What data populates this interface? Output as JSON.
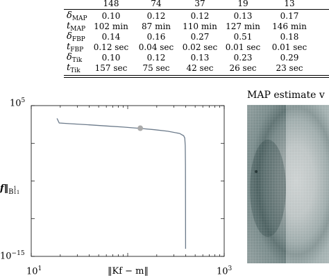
{
  "table": {
    "columns": [
      "148",
      "74",
      "37",
      "19",
      "13"
    ],
    "rows": [
      {
        "symbol": "δ",
        "sub": "MAP",
        "sub_italic": false,
        "values": [
          "0.10",
          "0.12",
          "0.12",
          "0.13",
          "0.17"
        ]
      },
      {
        "symbol": "t",
        "sub": "MAP",
        "sub_italic": false,
        "values": [
          "102 min",
          "87 min",
          "110 min",
          "127 min",
          "146 min"
        ]
      },
      {
        "symbol": "δ",
        "sub": "FBP",
        "sub_italic": false,
        "values": [
          "0.14",
          "0.16",
          "0.27",
          "0.51",
          "0.18"
        ]
      },
      {
        "symbol": "t",
        "sub": "FBP",
        "sub_italic": false,
        "values": [
          "0.12 sec",
          "0.04 sec",
          "0.02 sec",
          "0.01 sec",
          "0.01 sec"
        ]
      },
      {
        "symbol": "δ",
        "sub": "Tik",
        "sub_italic": false,
        "values": [
          "0.10",
          "0.12",
          "0.13",
          "0.23",
          "0.29"
        ]
      },
      {
        "symbol": "t",
        "sub": "Tik",
        "sub_italic": false,
        "values": [
          "157 sec",
          "75 sec",
          "42 sec",
          "26 sec",
          "23 sec"
        ]
      }
    ]
  },
  "chart_data": {
    "type": "line",
    "xlabel": "‖Kf − m‖",
    "ylabel": "f‖",
    "ylabel_sub": "B",
    "ylabel_sub_sup": "1",
    "ylabel_sub_sub": "11",
    "xscale": "log",
    "yscale": "log",
    "xlim": [
      10,
      1000
    ],
    "ylim": [
      1e-15,
      100000
    ],
    "x_ticks": [
      {
        "base": "10",
        "exp": "1",
        "value": 10
      },
      {
        "base": "10",
        "exp": "3",
        "value": 1000
      }
    ],
    "y_ticks": [
      {
        "base": "10",
        "exp": "5",
        "value": 100000
      },
      {
        "base": "10",
        "exp": "−15",
        "value": 1e-15
      }
    ],
    "series": [
      {
        "color": "#6b7a8a",
        "points": [
          [
            18.5,
            1995
          ],
          [
            19.5,
            501
          ],
          [
            25,
            398
          ],
          [
            40,
            282
          ],
          [
            60,
            200
          ],
          [
            90,
            141
          ],
          [
            130,
            100
          ],
          [
            190,
            63
          ],
          [
            260,
            40
          ],
          [
            345,
            20
          ],
          [
            380,
            10
          ],
          [
            390,
            5
          ],
          [
            395,
            0.5
          ],
          [
            397,
            0.001
          ],
          [
            398,
            1e-14
          ]
        ]
      }
    ],
    "marker": {
      "x": 135,
      "y": 100,
      "color": "#aaaaaa"
    }
  },
  "right_panel": {
    "title": "MAP estimate v"
  }
}
